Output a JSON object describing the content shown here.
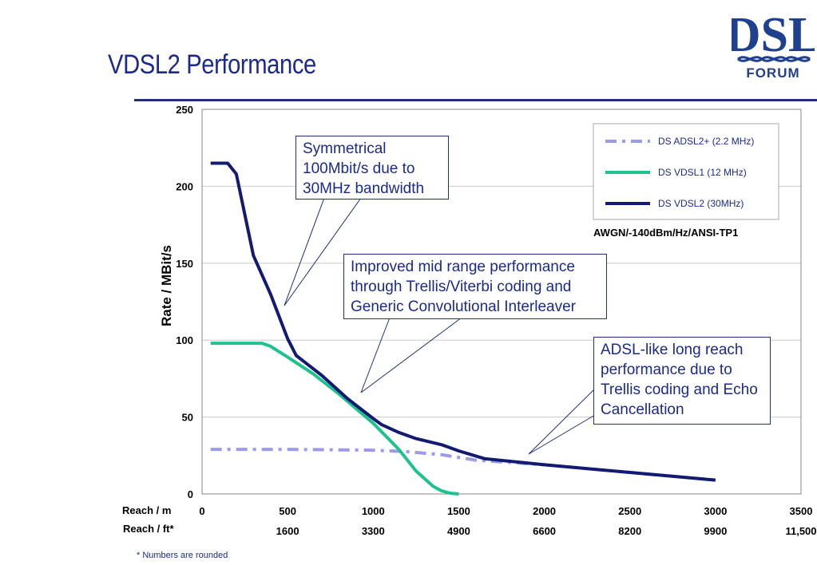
{
  "slide_title": "VDSL2 Performance",
  "logo": {
    "top_text": "DSL",
    "bottom_text": "FORUM",
    "color": "#1f3f8f"
  },
  "footnote": "* Numbers are rounded",
  "callouts": [
    "Symmetrical 100Mbit/s due to 30MHz bandwidth",
    "Improved mid range performance through Trellis/Viterbi coding and Generic Convolutional Interleaver",
    "ADSL-like long reach performance due to Trellis coding and Echo Cancellation"
  ],
  "colors": {
    "text": "#1c2a8c",
    "grid": "#c8c8c8",
    "rule": "#1f2f7a"
  },
  "chart_data": {
    "type": "line",
    "ylabel": "Rate / MBit/s",
    "xlabel_m": "Reach / m",
    "xlabel_ft": "Reach / ft*",
    "xlim": [
      0,
      3500
    ],
    "ylim": [
      0,
      250
    ],
    "yticks": [
      "0",
      "50",
      "100",
      "150",
      "200",
      "250"
    ],
    "xticks_m": [
      "0",
      "500",
      "1000",
      "1500",
      "2000",
      "2500",
      "3000",
      "3500"
    ],
    "xticks_ft": [
      "",
      "1600",
      "3300",
      "4900",
      "6600",
      "8200",
      "9900",
      "11,500"
    ],
    "annotation": "AWGN/-140dBm/Hz/ANSI-TP1",
    "grid": true,
    "legend_position": "top-right",
    "series": [
      {
        "name": "DS ADSL2+ (2.2 MHz)",
        "color": "#9b9bea",
        "style": "dash-dot",
        "x": [
          50,
          500,
          1000,
          1200,
          1400,
          1600,
          2000,
          2500,
          3000
        ],
        "values": [
          29,
          29,
          28.5,
          27.5,
          25.5,
          22,
          19,
          14,
          9
        ]
      },
      {
        "name": "DS VDSL1 (12 MHz)",
        "color": "#1fc28e",
        "style": "solid",
        "x": [
          50,
          200,
          350,
          400,
          500,
          650,
          800,
          1000,
          1150,
          1250,
          1350,
          1400,
          1450,
          1500
        ],
        "values": [
          98,
          98,
          98,
          96,
          89,
          78,
          65,
          46,
          29,
          15,
          5,
          2,
          0.5,
          0
        ]
      },
      {
        "name": "DS VDSL2 (30MHz)",
        "color": "#121a72",
        "style": "solid",
        "x": [
          50,
          150,
          200,
          300,
          400,
          500,
          550,
          700,
          850,
          1000,
          1050,
          1150,
          1250,
          1400,
          1500,
          1650,
          2000,
          2500,
          3000
        ],
        "values": [
          215,
          215,
          208,
          155,
          130,
          101,
          90,
          77,
          62,
          49,
          45,
          40,
          36,
          32,
          28,
          23,
          19,
          14,
          9
        ]
      }
    ]
  }
}
